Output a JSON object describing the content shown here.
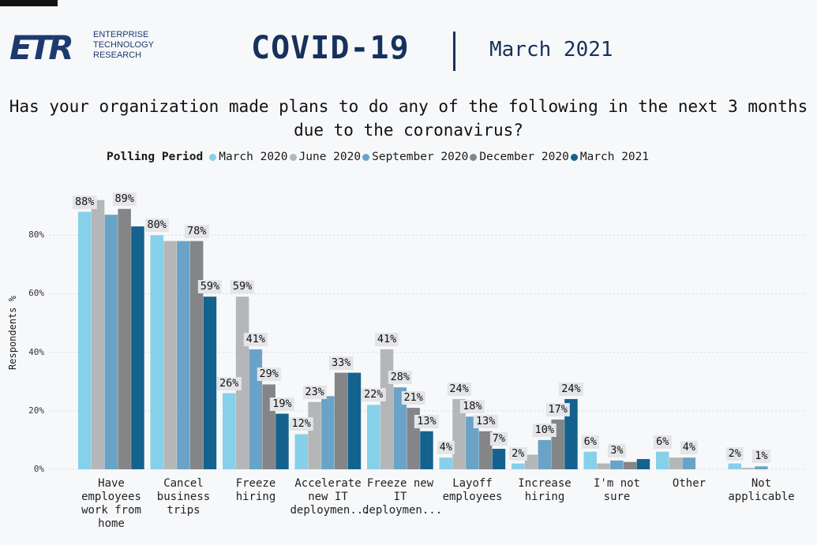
{
  "header": {
    "logo_mark": "ETR",
    "logo_lines": [
      "ENTERPRISE",
      "TECHNOLOGY",
      "RESEARCH"
    ],
    "title": "COVID-19",
    "period": "March 2021"
  },
  "question": "Has your organization made plans to do any of the following in the next 3 months due to the coronavirus?",
  "legend": {
    "title": "Polling Period",
    "items": [
      {
        "label": "March 2020",
        "color": "#86d0ea"
      },
      {
        "label": "June 2020",
        "color": "#b5b6b8"
      },
      {
        "label": "September 2020",
        "color": "#6aa3c7"
      },
      {
        "label": "December 2020",
        "color": "#848587"
      },
      {
        "label": "March 2021",
        "color": "#14628e"
      }
    ]
  },
  "chart_data": {
    "type": "bar",
    "ylabel": "Respondents %",
    "ylim": [
      0,
      100
    ],
    "yticks": [
      "0%",
      "20%",
      "40%",
      "60%",
      "80%"
    ],
    "categories": [
      "Have employees work from home",
      "Cancel business trips",
      "Freeze hiring",
      "Accelerate new IT deploymen...",
      "Freeze new IT deploymen...",
      "Layoff employees",
      "Increase hiring",
      "I'm not sure",
      "Other",
      "Not applicable"
    ],
    "category_lines": [
      [
        "Have",
        "employees",
        "work from",
        "home"
      ],
      [
        "Cancel",
        "business",
        "trips"
      ],
      [
        "Freeze",
        "hiring"
      ],
      [
        "Accelerate",
        "new IT",
        "deploymen..."
      ],
      [
        "Freeze new",
        "IT",
        "deploymen..."
      ],
      [
        "Layoff",
        "employees"
      ],
      [
        "Increase",
        "hiring"
      ],
      [
        "I'm not",
        "sure"
      ],
      [
        "Other"
      ],
      [
        "Not",
        "applicable"
      ]
    ],
    "series": [
      {
        "name": "March 2020",
        "values": [
          88,
          80,
          26,
          12,
          22,
          4,
          2,
          6,
          6,
          2
        ]
      },
      {
        "name": "June 2020",
        "values": [
          92,
          78,
          59,
          23,
          41,
          24,
          5,
          2,
          4,
          0.5
        ]
      },
      {
        "name": "September 2020",
        "values": [
          87,
          78,
          41,
          25,
          28,
          18,
          10,
          3,
          4,
          1
        ]
      },
      {
        "name": "December 2020",
        "values": [
          89,
          78,
          29,
          33,
          21,
          13,
          17,
          2.5,
          null,
          null
        ]
      },
      {
        "name": "March 2021",
        "values": [
          83,
          59,
          19,
          33,
          13,
          7,
          24,
          3.5,
          null,
          null
        ]
      }
    ],
    "data_labels": [
      {
        "category": 0,
        "series": 0,
        "text": "88%"
      },
      {
        "category": 0,
        "series": 3,
        "text": "89%"
      },
      {
        "category": 1,
        "series": 0,
        "text": "80%"
      },
      {
        "category": 1,
        "series": 3,
        "text": "78%"
      },
      {
        "category": 1,
        "series": 4,
        "text": "59%"
      },
      {
        "category": 2,
        "series": 0,
        "text": "26%"
      },
      {
        "category": 2,
        "series": 1,
        "text": "59%"
      },
      {
        "category": 2,
        "series": 2,
        "text": "41%"
      },
      {
        "category": 2,
        "series": 3,
        "text": "29%"
      },
      {
        "category": 2,
        "series": 4,
        "text": "19%"
      },
      {
        "category": 3,
        "series": 0,
        "text": "12%"
      },
      {
        "category": 3,
        "series": 1,
        "text": "23%"
      },
      {
        "category": 3,
        "series": 3,
        "text": "33%"
      },
      {
        "category": 4,
        "series": 0,
        "text": "22%"
      },
      {
        "category": 4,
        "series": 1,
        "text": "41%"
      },
      {
        "category": 4,
        "series": 2,
        "text": "28%"
      },
      {
        "category": 4,
        "series": 3,
        "text": "21%"
      },
      {
        "category": 4,
        "series": 4,
        "text": "13%"
      },
      {
        "category": 5,
        "series": 0,
        "text": "4%"
      },
      {
        "category": 5,
        "series": 1,
        "text": "24%"
      },
      {
        "category": 5,
        "series": 2,
        "text": "18%"
      },
      {
        "category": 5,
        "series": 3,
        "text": "13%"
      },
      {
        "category": 5,
        "series": 4,
        "text": "7%"
      },
      {
        "category": 6,
        "series": 0,
        "text": "2%"
      },
      {
        "category": 6,
        "series": 2,
        "text": "10%"
      },
      {
        "category": 6,
        "series": 3,
        "text": "17%"
      },
      {
        "category": 6,
        "series": 4,
        "text": "24%"
      },
      {
        "category": 7,
        "series": 0,
        "text": "6%"
      },
      {
        "category": 7,
        "series": 2,
        "text": "3%"
      },
      {
        "category": 8,
        "series": 0,
        "text": "6%"
      },
      {
        "category": 8,
        "series": 2,
        "text": "4%"
      },
      {
        "category": 9,
        "series": 0,
        "text": "2%"
      },
      {
        "category": 9,
        "series": 2,
        "text": "1%"
      }
    ],
    "grid": true,
    "legend_position": "top"
  }
}
